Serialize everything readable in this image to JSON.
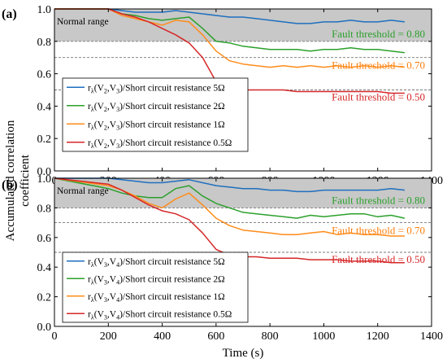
{
  "figure": {
    "ylabel_line1": "Accumulated correlation",
    "ylabel_line2": "coefficient",
    "xlabel": "Time (s)"
  },
  "chart_data": [
    {
      "type": "line",
      "panel_label": "(a)",
      "xlim": [
        0,
        1400
      ],
      "ylim": [
        0.0,
        1.0
      ],
      "xticks": [
        0,
        200,
        400,
        600,
        800,
        1000,
        1200,
        1400
      ],
      "yticks": [
        0.0,
        0.2,
        0.4,
        0.6,
        0.8,
        1.0
      ],
      "xtick_labels": [
        "0",
        "200",
        "400",
        "600",
        "800",
        "1000",
        "1200",
        "1400"
      ],
      "ytick_labels": [
        "0.0",
        "0.2",
        "0.4",
        "0.6",
        "0.8",
        "1.0"
      ],
      "normal_range": {
        "label": "Normal range",
        "y": [
          0.8,
          1.0
        ]
      },
      "thresholds": [
        {
          "label": "Fault threshold = 0.80",
          "value": 0.8,
          "color": "#2ca02c"
        },
        {
          "label": "Fault threshold = 0.70",
          "value": 0.7,
          "color": "#ff7f0e"
        },
        {
          "label": "Fault threshold = 0.50",
          "value": 0.5,
          "color": "#d62728"
        }
      ],
      "legend": {
        "position": "bottom-left"
      },
      "series": [
        {
          "prefix": "r",
          "sub": "λ",
          "args": "(V",
          "a1": "2",
          "mid": ",V",
          "a2": "3",
          "tail": ")/Short circuit resistance 5Ω",
          "color": "#1f6fbf",
          "x": [
            0,
            200,
            250,
            300,
            350,
            400,
            450,
            500,
            550,
            600,
            650,
            700,
            750,
            800,
            850,
            900,
            950,
            1000,
            1050,
            1100,
            1150,
            1200,
            1250,
            1300
          ],
          "y": [
            1.0,
            1.0,
            0.99,
            0.98,
            0.98,
            0.98,
            0.99,
            0.98,
            0.97,
            0.96,
            0.95,
            0.95,
            0.94,
            0.93,
            0.92,
            0.91,
            0.91,
            0.92,
            0.92,
            0.93,
            0.92,
            0.92,
            0.93,
            0.92
          ]
        },
        {
          "prefix": "r",
          "sub": "λ",
          "args": "(V",
          "a1": "2",
          "mid": ",V",
          "a2": "3",
          "tail": ")/Short circuit resistance 2Ω",
          "color": "#2ca02c",
          "x": [
            0,
            200,
            250,
            300,
            350,
            400,
            450,
            500,
            550,
            600,
            650,
            700,
            750,
            800,
            850,
            900,
            950,
            1000,
            1050,
            1100,
            1150,
            1200,
            1250,
            1300
          ],
          "y": [
            1.0,
            1.0,
            0.97,
            0.96,
            0.94,
            0.93,
            0.94,
            0.95,
            0.88,
            0.8,
            0.79,
            0.77,
            0.76,
            0.75,
            0.75,
            0.75,
            0.74,
            0.75,
            0.75,
            0.76,
            0.75,
            0.75,
            0.74,
            0.73
          ]
        },
        {
          "prefix": "r",
          "sub": "λ",
          "args": "(V",
          "a1": "2",
          "mid": ",V",
          "a2": "3",
          "tail": ")/Short circuit resistance 1Ω",
          "color": "#ff8c1a",
          "x": [
            0,
            200,
            250,
            300,
            350,
            400,
            450,
            500,
            550,
            600,
            650,
            700,
            750,
            800,
            850,
            900,
            950,
            1000,
            1050,
            1100,
            1150,
            1200,
            1250,
            1300
          ],
          "y": [
            1.0,
            1.0,
            0.96,
            0.94,
            0.92,
            0.9,
            0.93,
            0.92,
            0.84,
            0.74,
            0.68,
            0.66,
            0.65,
            0.64,
            0.65,
            0.64,
            0.65,
            0.64,
            0.65,
            0.64,
            0.65,
            0.64,
            0.65,
            0.64
          ]
        },
        {
          "prefix": "r",
          "sub": "λ",
          "args": "(V",
          "a1": "2",
          "mid": ",V",
          "a2": "3",
          "tail": ")/Short circuit resistance 0.5Ω",
          "color": "#d62728",
          "x": [
            0,
            200,
            250,
            300,
            350,
            400,
            450,
            500,
            550,
            600,
            650,
            700,
            750,
            800,
            850,
            900,
            950,
            1000,
            1050,
            1100,
            1150,
            1200,
            1250,
            1300
          ],
          "y": [
            1.0,
            1.0,
            0.97,
            0.95,
            0.92,
            0.88,
            0.84,
            0.79,
            0.7,
            0.55,
            0.51,
            0.5,
            0.5,
            0.5,
            0.5,
            0.49,
            0.49,
            0.49,
            0.49,
            0.49,
            0.49,
            0.49,
            0.48,
            0.48
          ]
        }
      ]
    },
    {
      "type": "line",
      "panel_label": "(b)",
      "xlim": [
        0,
        1400
      ],
      "ylim": [
        0.0,
        1.0
      ],
      "xticks": [
        0,
        200,
        400,
        600,
        800,
        1000,
        1200,
        1400
      ],
      "yticks": [
        0.0,
        0.2,
        0.4,
        0.6,
        0.8,
        1.0
      ],
      "xtick_labels": [
        "0",
        "200",
        "400",
        "600",
        "800",
        "1000",
        "1200",
        "1400"
      ],
      "ytick_labels": [
        "0.0",
        "0.2",
        "0.4",
        "0.6",
        "0.8",
        "1.0"
      ],
      "normal_range": {
        "label": "Normal range",
        "y": [
          0.8,
          1.0
        ]
      },
      "thresholds": [
        {
          "label": "Fault threshold = 0.80",
          "value": 0.8,
          "color": "#2ca02c"
        },
        {
          "label": "Fault threshold = 0.70",
          "value": 0.7,
          "color": "#ff7f0e"
        },
        {
          "label": "Fault threshold = 0.50",
          "value": 0.5,
          "color": "#d62728"
        }
      ],
      "legend": {
        "position": "bottom-left"
      },
      "series": [
        {
          "prefix": "r",
          "sub": "λ",
          "args": "(V",
          "a1": "3",
          "mid": ",V",
          "a2": "4",
          "tail": ")/Short circuit resistance 5Ω",
          "color": "#1f6fbf",
          "x": [
            0,
            200,
            250,
            300,
            350,
            400,
            450,
            500,
            550,
            600,
            650,
            700,
            750,
            800,
            850,
            900,
            950,
            1000,
            1050,
            1100,
            1150,
            1200,
            1250,
            1300
          ],
          "y": [
            1.0,
            1.0,
            0.99,
            0.98,
            0.97,
            0.97,
            0.98,
            0.99,
            0.97,
            0.95,
            0.94,
            0.93,
            0.93,
            0.92,
            0.92,
            0.91,
            0.91,
            0.92,
            0.92,
            0.92,
            0.92,
            0.92,
            0.93,
            0.92
          ]
        },
        {
          "prefix": "r",
          "sub": "λ",
          "args": "(V",
          "a1": "3",
          "mid": ",V",
          "a2": "4",
          "tail": ")/Short circuit resistance 2Ω",
          "color": "#2ca02c",
          "x": [
            0,
            200,
            250,
            300,
            350,
            400,
            450,
            500,
            550,
            600,
            650,
            700,
            750,
            800,
            850,
            900,
            950,
            1000,
            1050,
            1100,
            1150,
            1200,
            1250,
            1300
          ],
          "y": [
            1.0,
            0.93,
            0.9,
            0.88,
            0.87,
            0.87,
            0.93,
            0.95,
            0.88,
            0.83,
            0.8,
            0.77,
            0.76,
            0.75,
            0.74,
            0.73,
            0.75,
            0.74,
            0.75,
            0.76,
            0.76,
            0.74,
            0.75,
            0.73
          ]
        },
        {
          "prefix": "r",
          "sub": "λ",
          "args": "(V",
          "a1": "3",
          "mid": ",V",
          "a2": "4",
          "tail": ")/Short circuit resistance 1Ω",
          "color": "#ff8c1a",
          "x": [
            0,
            200,
            250,
            300,
            350,
            400,
            450,
            500,
            550,
            600,
            650,
            700,
            750,
            800,
            850,
            900,
            950,
            1000,
            1050,
            1100,
            1150,
            1200,
            1250,
            1300
          ],
          "y": [
            1.0,
            0.95,
            0.92,
            0.88,
            0.83,
            0.8,
            0.86,
            0.9,
            0.82,
            0.73,
            0.68,
            0.65,
            0.64,
            0.63,
            0.62,
            0.62,
            0.63,
            0.64,
            0.62,
            0.63,
            0.62,
            0.62,
            0.61,
            0.61
          ]
        },
        {
          "prefix": "r",
          "sub": "λ",
          "args": "(V",
          "a1": "3",
          "mid": ",V",
          "a2": "4",
          "tail": ")/Short circuit resistance 0.5Ω",
          "color": "#d62728",
          "x": [
            0,
            200,
            250,
            300,
            350,
            400,
            450,
            500,
            550,
            600,
            650,
            700,
            750,
            800,
            850,
            900,
            950,
            1000,
            1050,
            1100,
            1150,
            1200,
            1250,
            1300
          ],
          "y": [
            1.0,
            0.96,
            0.92,
            0.87,
            0.82,
            0.78,
            0.76,
            0.72,
            0.63,
            0.52,
            0.48,
            0.47,
            0.47,
            0.46,
            0.46,
            0.46,
            0.45,
            0.45,
            0.45,
            0.44,
            0.44,
            0.44,
            0.43,
            0.43
          ]
        }
      ]
    }
  ]
}
